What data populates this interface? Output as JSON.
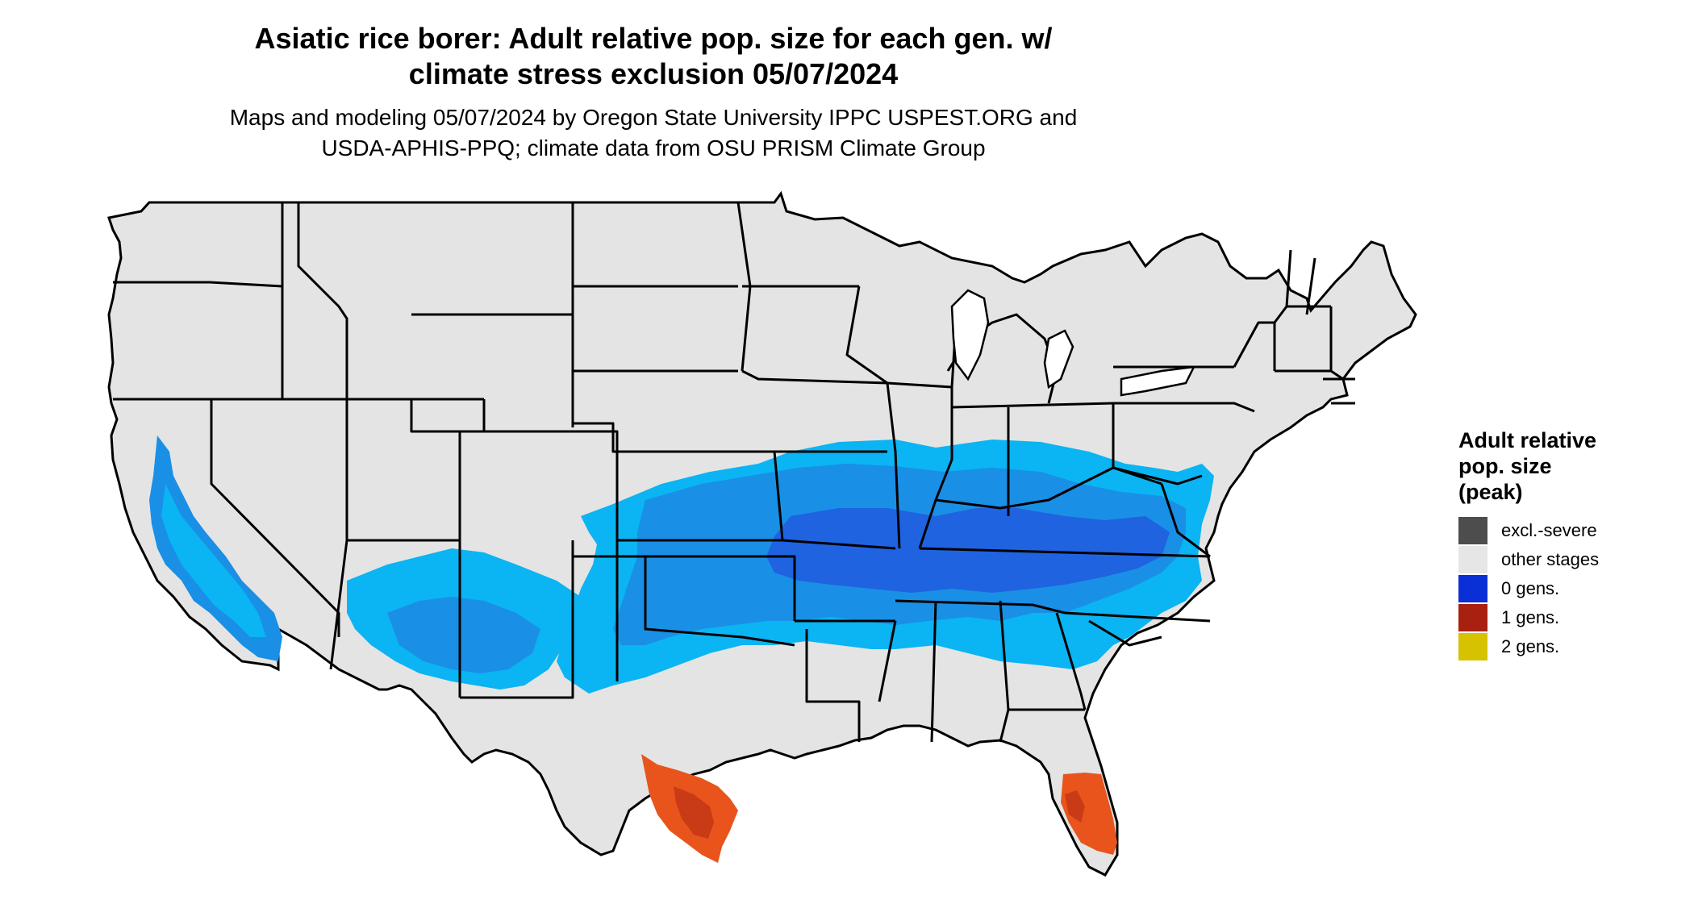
{
  "title": {
    "line1": "Asiatic rice borer: Adult relative pop. size for each gen. w/",
    "line2": "climate stress exclusion 05/07/2024"
  },
  "subtitle": {
    "line1": "Maps and modeling 05/07/2024 by Oregon State University IPPC USPEST.ORG and",
    "line2": "USDA-APHIS-PPQ; climate data from OSU PRISM Climate Group"
  },
  "legend": {
    "title_line1": "Adult relative",
    "title_line2": "pop. size",
    "title_line3": "(peak)",
    "items": [
      {
        "label": "excl.-severe",
        "color": "#4d4d4d"
      },
      {
        "label": "other stages",
        "color": "#e6e6e6"
      },
      {
        "label": "0 gens.",
        "color": "#0a2fd6"
      },
      {
        "label": "1 gens.",
        "color": "#a8200f"
      },
      {
        "label": "2 gens.",
        "color": "#d6c200"
      }
    ]
  },
  "colors": {
    "land": "#e4e4e4",
    "zero_gen_light": "#0bb4f2",
    "zero_gen_mid": "#1a8fe6",
    "zero_gen_dark": "#1f63e0",
    "one_gen_orange": "#e8541c",
    "one_gen_dark": "#c93a16",
    "borders": "#000000"
  }
}
